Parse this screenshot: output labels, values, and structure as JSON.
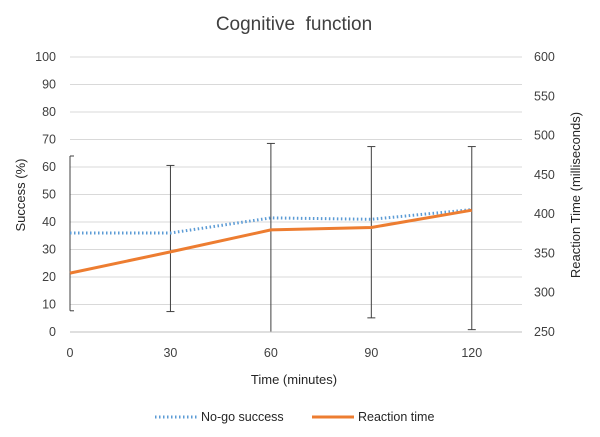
{
  "chart_data": {
    "type": "line",
    "title": "Cognitive  function",
    "xlabel": "Time (minutes)",
    "ylabel_left": "Success (%)",
    "ylabel_right": "Reaction Time (milliseconds)",
    "x": [
      0,
      30,
      60,
      90,
      120
    ],
    "x_ticks": [
      "0",
      "30",
      "60",
      "90",
      "120"
    ],
    "xlim": [
      0,
      135
    ],
    "ylim_left": [
      0,
      100
    ],
    "ylim_right": [
      250,
      600
    ],
    "y_ticks_left": [
      "0",
      "10",
      "20",
      "30",
      "40",
      "50",
      "60",
      "70",
      "80",
      "90",
      "100"
    ],
    "y_ticks_right": [
      "250",
      "300",
      "350",
      "400",
      "450",
      "500",
      "550",
      "600"
    ],
    "grid": true,
    "legend_position": "bottom",
    "series": [
      {
        "name": "No-go success",
        "axis": "left",
        "style": "dotted",
        "color": "#5B9BD5",
        "values": [
          36,
          36,
          41.5,
          41,
          44.5
        ]
      },
      {
        "name": "Reaction time",
        "axis": "right",
        "style": "solid",
        "color": "#ED7D31",
        "values": [
          325,
          352,
          380,
          383,
          405
        ],
        "error_low": [
          277,
          276,
          250,
          268,
          253
        ],
        "error_high": [
          474,
          462,
          490,
          486,
          486
        ]
      }
    ]
  }
}
